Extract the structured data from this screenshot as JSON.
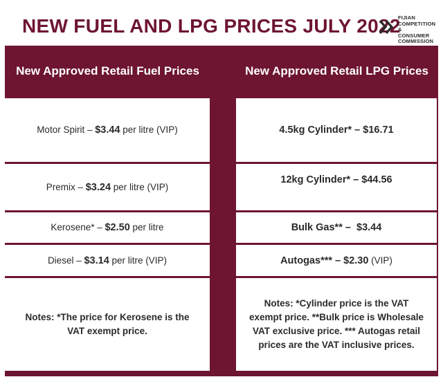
{
  "title": "NEW FUEL AND LPG PRICES JULY 2022",
  "logo": {
    "line1": "FIJIAN",
    "line2": "COMPETITION &",
    "line3": "CONSUMER",
    "line4": "COMMISSION",
    "icon": "double-chevron-icon"
  },
  "colors": {
    "brand": "#6d1531",
    "text": "#2a2a2a",
    "background": "#ffffff"
  },
  "fuel": {
    "header": "New Approved Retail Fuel Prices",
    "rows": [
      {
        "name": "Motor Spirit – ",
        "price": "$3.44",
        "suffix": " per litre (VIP)"
      },
      {
        "name": "Premix – ",
        "price": "$3.24",
        "suffix": " per litre (VIP)"
      },
      {
        "name": "Kerosene* – ",
        "price": "$2.50",
        "suffix": " per litre"
      },
      {
        "name": "Diesel – ",
        "price": "$3.14",
        "suffix": " per litre (VIP)"
      }
    ],
    "notes": "Notes: *The price for Kerosene is the VAT exempt price."
  },
  "lpg": {
    "header": "New Approved Retail LPG Prices",
    "rows": [
      {
        "name": "4.5kg Cylinder* – ",
        "price": "$16.71",
        "suffix": ""
      },
      {
        "name": "12kg Cylinder* – ",
        "price": "$44.56",
        "suffix": ""
      },
      {
        "name": "Bulk Gas** –  ",
        "price": "$3.44",
        "suffix": ""
      },
      {
        "name": "Autogas*** – ",
        "price": "$2.30",
        "suffix": " (VIP)"
      }
    ],
    "notes": "Notes: *Cylinder price is the VAT exempt price. **Bulk price is Wholesale VAT exclusive price. *** Autogas retail prices are the VAT inclusive prices."
  }
}
